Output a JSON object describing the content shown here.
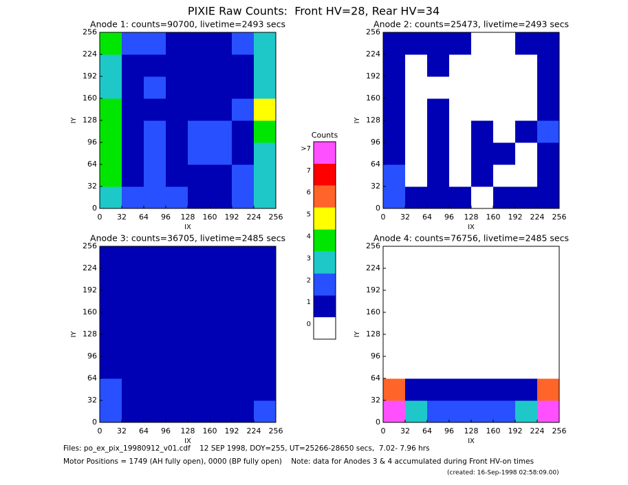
{
  "title": "PIXIE Raw Counts:  Front HV=28, Rear HV=34",
  "chart_data": [
    {
      "type": "heatmap",
      "title": "Anode 1: counts=90700, livetime=2493 secs",
      "x_label": "IX",
      "y_label": "IY",
      "xlim": [
        0,
        256
      ],
      "ylim": [
        0,
        256
      ],
      "xticks": [
        0,
        32,
        64,
        96,
        128,
        160,
        192,
        224,
        256
      ],
      "yticks": [
        0,
        32,
        64,
        96,
        128,
        160,
        192,
        224,
        256
      ],
      "z": [
        [
          3,
          2,
          2,
          2,
          1,
          1,
          2,
          3
        ],
        [
          4,
          1,
          2,
          1,
          1,
          1,
          2,
          3
        ],
        [
          4,
          1,
          2,
          1,
          2,
          2,
          1,
          3
        ],
        [
          4,
          1,
          2,
          1,
          2,
          2,
          1,
          4
        ],
        [
          4,
          1,
          1,
          1,
          1,
          1,
          2,
          5
        ],
        [
          3,
          1,
          2,
          1,
          1,
          1,
          1,
          3
        ],
        [
          3,
          1,
          1,
          1,
          1,
          1,
          1,
          3
        ],
        [
          4,
          2,
          2,
          1,
          1,
          1,
          2,
          3
        ]
      ]
    },
    {
      "type": "heatmap",
      "title": "Anode 2: counts=25473, livetime=2493 secs",
      "x_label": "IX",
      "y_label": "IY",
      "xlim": [
        0,
        256
      ],
      "ylim": [
        0,
        256
      ],
      "xticks": [
        0,
        32,
        64,
        96,
        128,
        160,
        192,
        224,
        256
      ],
      "yticks": [
        0,
        32,
        64,
        96,
        128,
        160,
        192,
        224,
        256
      ],
      "z": [
        [
          2,
          1,
          1,
          1,
          0,
          1,
          1,
          1
        ],
        [
          2,
          0,
          1,
          0,
          1,
          0,
          0,
          1
        ],
        [
          1,
          0,
          1,
          0,
          1,
          1,
          0,
          1
        ],
        [
          1,
          0,
          1,
          0,
          1,
          0,
          1,
          2
        ],
        [
          1,
          0,
          1,
          0,
          0,
          0,
          0,
          1
        ],
        [
          1,
          0,
          0,
          0,
          0,
          0,
          0,
          1
        ],
        [
          1,
          0,
          1,
          0,
          0,
          0,
          0,
          1
        ],
        [
          1,
          1,
          1,
          1,
          0,
          0,
          1,
          1
        ]
      ]
    },
    {
      "type": "heatmap",
      "title": "Anode 3: counts=36705, livetime=2485 secs",
      "x_label": "IX",
      "y_label": "IY",
      "xlim": [
        0,
        256
      ],
      "ylim": [
        0,
        256
      ],
      "xticks": [
        0,
        32,
        64,
        96,
        128,
        160,
        192,
        224,
        256
      ],
      "yticks": [
        0,
        32,
        64,
        96,
        128,
        160,
        192,
        224,
        256
      ],
      "z": [
        [
          2,
          1,
          1,
          1,
          1,
          1,
          1,
          2
        ],
        [
          2,
          1,
          1,
          1,
          1,
          1,
          1,
          1
        ],
        [
          1,
          1,
          1,
          1,
          1,
          1,
          1,
          1
        ],
        [
          1,
          1,
          1,
          1,
          1,
          1,
          1,
          1
        ],
        [
          1,
          1,
          1,
          1,
          1,
          1,
          1,
          1
        ],
        [
          1,
          1,
          1,
          1,
          1,
          1,
          1,
          1
        ],
        [
          1,
          1,
          1,
          1,
          1,
          1,
          1,
          1
        ],
        [
          1,
          1,
          1,
          1,
          1,
          1,
          1,
          1
        ]
      ]
    },
    {
      "type": "heatmap",
      "title": "Anode 4: counts=76756, livetime=2485 secs",
      "x_label": "IX",
      "y_label": "IY",
      "xlim": [
        0,
        256
      ],
      "ylim": [
        0,
        256
      ],
      "xticks": [
        0,
        32,
        64,
        96,
        128,
        160,
        192,
        224,
        256
      ],
      "yticks": [
        0,
        32,
        64,
        96,
        128,
        160,
        192,
        224,
        256
      ],
      "z": [
        [
          8,
          3,
          2,
          2,
          2,
          2,
          3,
          8
        ],
        [
          6,
          1,
          1,
          1,
          1,
          1,
          1,
          6
        ],
        [
          0,
          0,
          0,
          0,
          0,
          0,
          0,
          0
        ],
        [
          0,
          0,
          0,
          0,
          0,
          0,
          0,
          0
        ],
        [
          0,
          0,
          0,
          0,
          0,
          0,
          0,
          0
        ],
        [
          0,
          0,
          0,
          0,
          0,
          0,
          0,
          0
        ],
        [
          0,
          0,
          0,
          0,
          0,
          0,
          0,
          0
        ],
        [
          0,
          0,
          0,
          0,
          0,
          0,
          0,
          0
        ]
      ]
    }
  ],
  "colorbar": {
    "title": "Counts",
    "colors": [
      "#ffffff",
      "#0000b4",
      "#2850ff",
      "#1ec8c8",
      "#00e600",
      "#ffff00",
      "#ff6428",
      "#ff0000",
      "#ff50ff"
    ],
    "ticks": [
      0,
      1,
      2,
      3,
      4,
      5,
      6,
      7,
      {
        "value": 8,
        "label": ">7"
      }
    ]
  },
  "footer": {
    "line1": "Files: po_ex_pix_19980912_v01.cdf    12 SEP 1998, DOY=255, UT=25266-28650 secs,  7.02- 7.96 hrs",
    "line2": "Motor Positions = 1749 (AH fully open), 0000 (BP fully open)    Note: data for Anodes 3 & 4 accumulated during Front HV-on times",
    "created": "(created: 16-Sep-1998 02:58:09.00)"
  }
}
